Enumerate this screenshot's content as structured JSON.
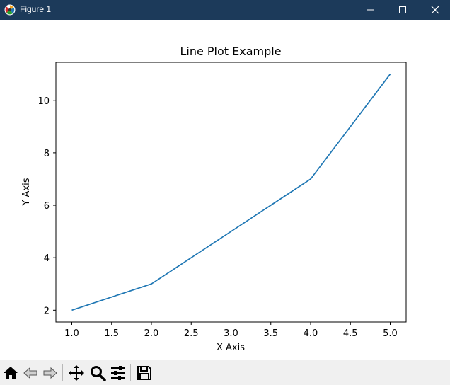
{
  "window": {
    "title": "Figure 1",
    "title_bar_color": "#1c3a5a"
  },
  "toolbar": {
    "icons": [
      "home-icon",
      "back-arrow-icon",
      "forward-arrow-icon",
      "pan-icon",
      "zoom-icon",
      "configure-subplots-icon",
      "save-icon"
    ]
  },
  "chart_data": {
    "type": "line",
    "title": "Line Plot Example",
    "xlabel": "X Axis",
    "ylabel": "Y Axis",
    "x": [
      1,
      2,
      3,
      4,
      5
    ],
    "series": [
      {
        "values": [
          2,
          3,
          5,
          7,
          11
        ],
        "color": "#1f77b4"
      }
    ],
    "xlim": [
      0.8,
      5.2
    ],
    "ylim": [
      1.55,
      11.45
    ],
    "xticks": [
      "1.0",
      "1.5",
      "2.0",
      "2.5",
      "3.0",
      "3.5",
      "4.0",
      "4.5",
      "5.0"
    ],
    "yticks": [
      "2",
      "4",
      "6",
      "8",
      "10"
    ],
    "grid": false,
    "legend": "none"
  }
}
